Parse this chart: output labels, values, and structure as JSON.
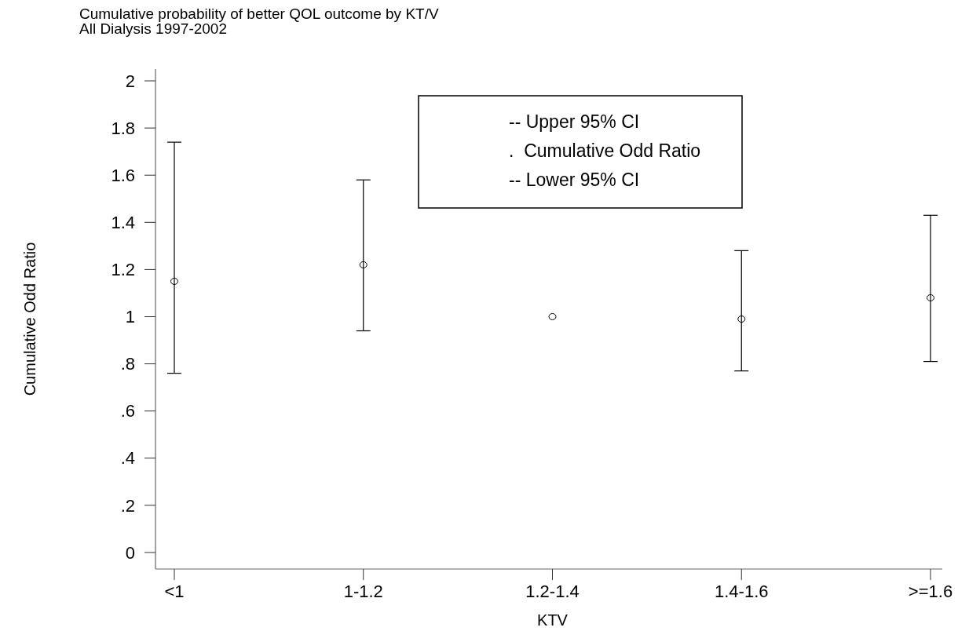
{
  "chart_data": {
    "type": "scatter",
    "title": "Cumulative probability of better QOL outcome by KT/V",
    "subtitle": "All Dialysis 1997-2002",
    "xlabel": "KTV",
    "ylabel": "Cumulative Odd Ratio",
    "categories": [
      "<1",
      "1-1.2",
      "1.2-1.4",
      "1.4-1.6",
      ">=1.6"
    ],
    "series": [
      {
        "color": "#000000",
        "values": [
          1.15,
          1.22,
          1.0,
          0.99,
          1.08
        ],
        "errors": [
          [
            0.76,
            1.74
          ],
          [
            0.94,
            1.58
          ],
          null,
          [
            0.77,
            1.28
          ],
          [
            0.81,
            1.43
          ]
        ]
      }
    ],
    "ylim": [
      -0.07,
      2.05
    ],
    "yticks": [
      {
        "value": 0,
        "label": "0"
      },
      {
        "value": 0.2,
        "label": ".2"
      },
      {
        "value": 0.4,
        "label": ".4"
      },
      {
        "value": 0.6,
        "label": ".6"
      },
      {
        "value": 0.8,
        "label": ".8"
      },
      {
        "value": 1,
        "label": "1"
      },
      {
        "value": 1.2,
        "label": "1.2"
      },
      {
        "value": 1.4,
        "label": "1.4"
      },
      {
        "value": 1.6,
        "label": "1.6"
      },
      {
        "value": 1.8,
        "label": "1.8"
      },
      {
        "value": 2,
        "label": "2"
      }
    ],
    "annotations": [
      "-- Upper 95% CI",
      ".  Cumulative Odd Ratio",
      "-- Lower 95% CI"
    ],
    "marker": "circle",
    "grid": false
  }
}
